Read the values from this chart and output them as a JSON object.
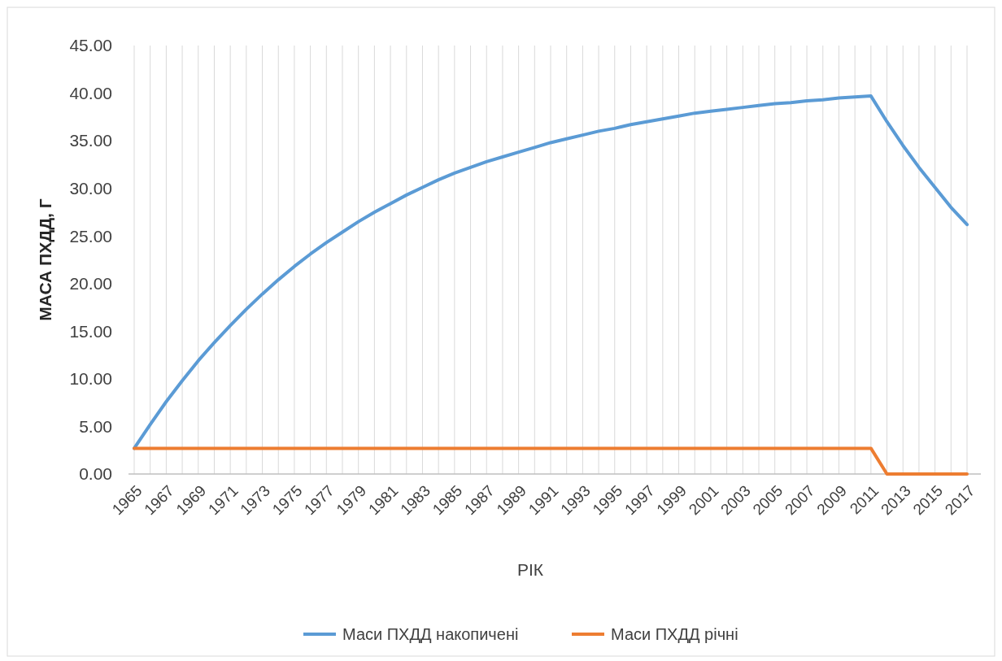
{
  "chart_data": {
    "type": "line",
    "xlabel": "РІК",
    "ylabel": "МАСА ПХДД, Г",
    "categories": [
      "1965",
      null,
      "1967",
      null,
      "1969",
      null,
      "1971",
      null,
      "1973",
      null,
      "1975",
      null,
      "1977",
      null,
      "1979",
      null,
      "1981",
      null,
      "1983",
      null,
      "1985",
      null,
      "1987",
      null,
      "1989",
      null,
      "1991",
      null,
      "1993",
      null,
      "1995",
      null,
      "1997",
      null,
      "1999",
      null,
      "2001",
      null,
      "2003",
      null,
      "2005",
      null,
      "2007",
      null,
      "2009",
      null,
      "2011",
      null,
      "2013",
      null,
      "2015",
      null,
      "2017"
    ],
    "series": [
      {
        "name": "Маси ПХДД накопичені",
        "color": "#5b9bd5",
        "values": [
          2.7,
          5.2,
          7.6,
          9.8,
          11.9,
          13.8,
          15.6,
          17.3,
          18.9,
          20.4,
          21.8,
          23.1,
          24.3,
          25.4,
          26.5,
          27.5,
          28.4,
          29.3,
          30.1,
          30.9,
          31.6,
          32.2,
          32.8,
          33.3,
          33.8,
          34.3,
          34.8,
          35.2,
          35.6,
          36.0,
          36.3,
          36.7,
          37.0,
          37.3,
          37.6,
          37.9,
          38.1,
          38.3,
          38.5,
          38.7,
          38.9,
          39.0,
          39.2,
          39.3,
          39.5,
          39.6,
          39.7,
          37.0,
          34.5,
          32.2,
          30.1,
          28.0,
          26.2
        ]
      },
      {
        "name": "Маси ПХДД річні",
        "color": "#ed7d31",
        "values": [
          2.7,
          2.7,
          2.7,
          2.7,
          2.7,
          2.7,
          2.7,
          2.7,
          2.7,
          2.7,
          2.7,
          2.7,
          2.7,
          2.7,
          2.7,
          2.7,
          2.7,
          2.7,
          2.7,
          2.7,
          2.7,
          2.7,
          2.7,
          2.7,
          2.7,
          2.7,
          2.7,
          2.7,
          2.7,
          2.7,
          2.7,
          2.7,
          2.7,
          2.7,
          2.7,
          2.7,
          2.7,
          2.7,
          2.7,
          2.7,
          2.7,
          2.7,
          2.7,
          2.7,
          2.7,
          2.7,
          2.7,
          0,
          0,
          0,
          0,
          0,
          0
        ]
      }
    ],
    "ylim": [
      0,
      45
    ],
    "yticks": [
      {
        "value": 0,
        "label": "0.00"
      },
      {
        "value": 5,
        "label": "5.00"
      },
      {
        "value": 10,
        "label": "10.00"
      },
      {
        "value": 15,
        "label": "15.00"
      },
      {
        "value": 20,
        "label": "20.00"
      },
      {
        "value": 25,
        "label": "25.00"
      },
      {
        "value": 30,
        "label": "30.00"
      },
      {
        "value": 35,
        "label": "35.00"
      },
      {
        "value": 40,
        "label": "40.00"
      },
      {
        "value": 45,
        "label": "45.00"
      }
    ],
    "grid": "x",
    "legend": "bottom",
    "marker": "none",
    "line_style": "solid"
  }
}
